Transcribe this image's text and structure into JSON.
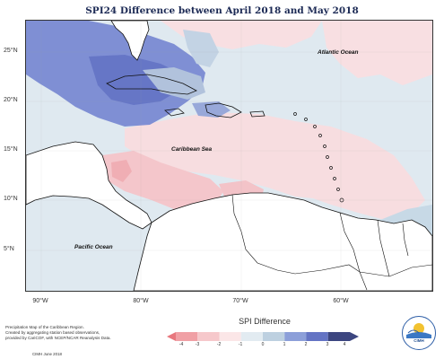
{
  "title": "SPI24 Difference between April 2018 and May 2018",
  "lat_labels": [
    "25°N",
    "20°N",
    "15°N",
    "10°N",
    "5°N"
  ],
  "lon_labels": [
    "90°W",
    "80°W",
    "70°W",
    "60°W"
  ],
  "ocean_labels": {
    "atlantic": "Atlantic Ocean",
    "caribbean": "Caribbean Sea",
    "pacific": "Pacific Ocean"
  },
  "legend": {
    "title": "SPI Difference",
    "ticks": [
      "-4",
      "-3",
      "-2",
      "-1",
      "0",
      "1",
      "2",
      "3",
      "4"
    ],
    "colors": [
      "#e8777e",
      "#f0a0a5",
      "#f6c8cb",
      "#fbe6e7",
      "#e2ebf1",
      "#bdd0e0",
      "#8c9fd9",
      "#6474c4",
      "#3c4680"
    ]
  },
  "footnote": [
    "Precipitation Map of the Caribbean Region.",
    "Created by aggregating station based observations,",
    "provided by CariCOF, with NCEP/NCAR Reanalysis Data."
  ],
  "credit": "CIMH June 2018",
  "logo_text": "CIMH"
}
